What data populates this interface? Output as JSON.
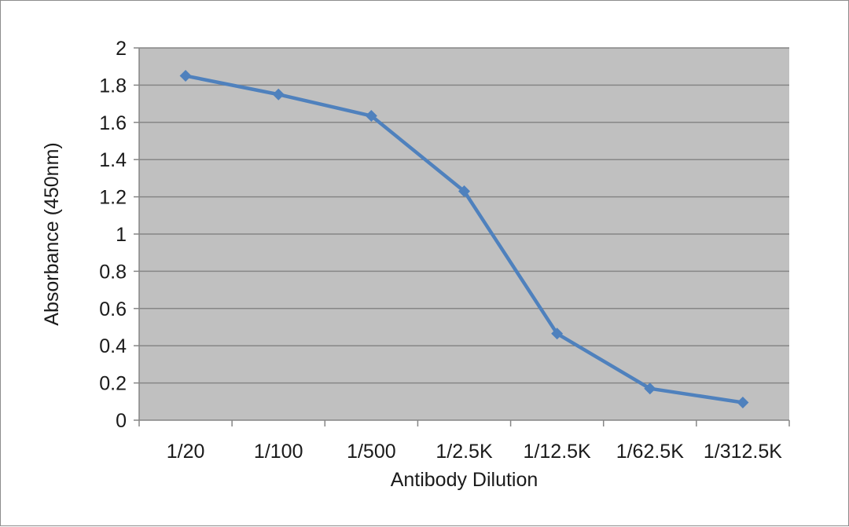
{
  "chart_data": {
    "type": "line",
    "title": "",
    "xlabel": "Antibody Dilution",
    "ylabel": "Absorbance (450nm)",
    "categories": [
      "1/20",
      "1/100",
      "1/500",
      "1/2.5K",
      "1/12.5K",
      "1/62.5K",
      "1/312.5K"
    ],
    "series": [
      {
        "values": [
          1.85,
          1.75,
          1.635,
          1.23,
          0.465,
          0.17,
          0.095
        ],
        "color": "#4f81bd",
        "marker": "diamond"
      }
    ],
    "ylim": [
      0,
      2
    ],
    "yticks": [
      0,
      0.2,
      0.4,
      0.6,
      0.8,
      1,
      1.2,
      1.4,
      1.6,
      1.8,
      2
    ],
    "ytick_labels": [
      "0",
      "0.2",
      "0.4",
      "0.6",
      "0.8",
      "1",
      "1.2",
      "1.4",
      "1.6",
      "1.8",
      "2"
    ],
    "grid": true,
    "legend": "none",
    "plot_background": "#c0c0c0",
    "gridline_color": "#868686"
  }
}
